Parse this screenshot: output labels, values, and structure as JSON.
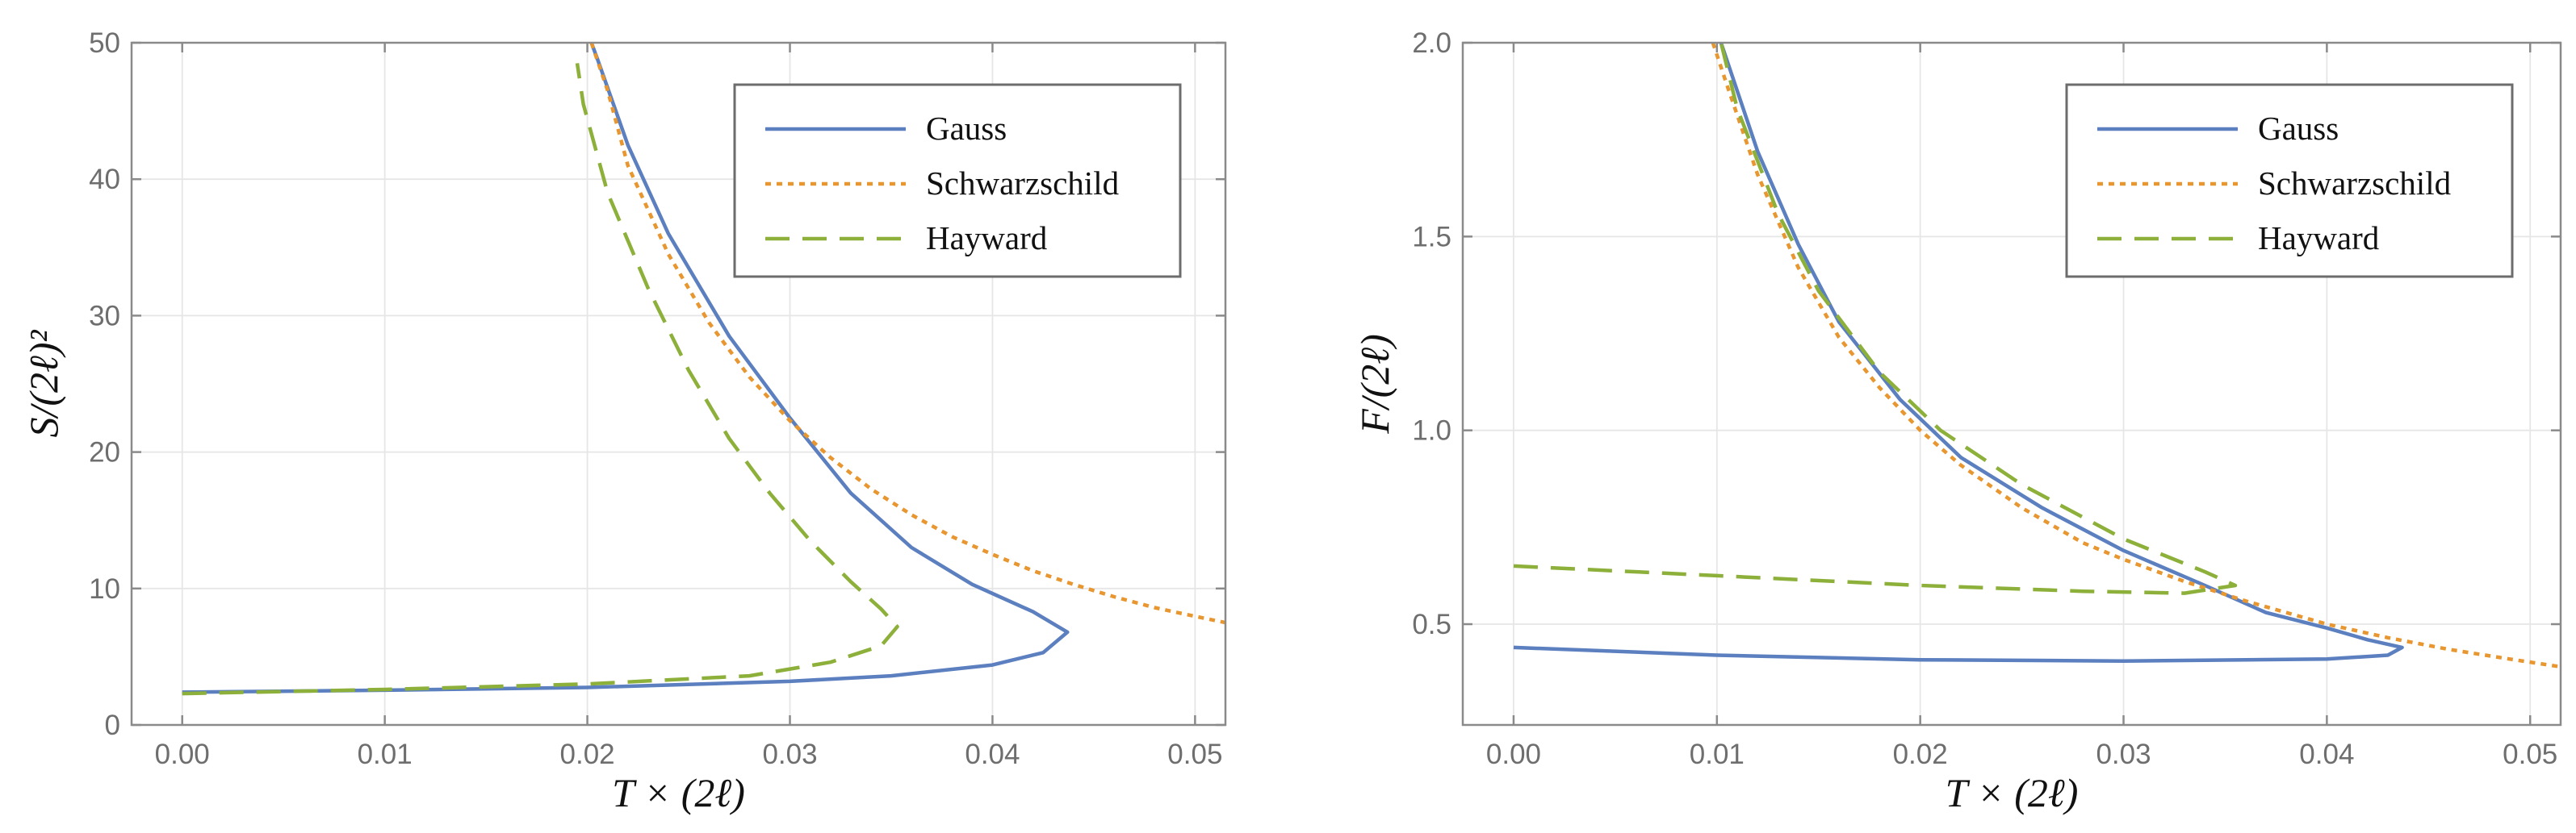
{
  "chart_data": [
    {
      "type": "line",
      "xlabel": "T × (2ℓ)",
      "ylabel": "S/(2ℓ)²",
      "xlim": [
        -0.0025,
        0.0515
      ],
      "ylim": [
        0,
        50
      ],
      "xticks": [
        0.0,
        0.01,
        0.02,
        0.03,
        0.04,
        0.05
      ],
      "xtick_labels": [
        "0.00",
        "0.01",
        "0.02",
        "0.03",
        "0.04",
        "0.05"
      ],
      "yticks": [
        0,
        10,
        20,
        30,
        40,
        50
      ],
      "ytick_labels": [
        "0",
        "10",
        "20",
        "30",
        "40",
        "50"
      ],
      "grid": true,
      "legend_position": "top-right",
      "series": [
        {
          "name": "Gauss",
          "color": "#5b7fbf",
          "style": "solid",
          "points": [
            [
              0.0,
              2.4
            ],
            [
              0.01,
              2.55
            ],
            [
              0.02,
              2.75
            ],
            [
              0.03,
              3.2
            ],
            [
              0.035,
              3.6
            ],
            [
              0.04,
              4.4
            ],
            [
              0.0425,
              5.3
            ],
            [
              0.0437,
              6.8
            ],
            [
              0.042,
              8.3
            ],
            [
              0.039,
              10.3
            ],
            [
              0.036,
              13.0
            ],
            [
              0.033,
              17.0
            ],
            [
              0.03,
              22.5
            ],
            [
              0.027,
              28.5
            ],
            [
              0.024,
              36.0
            ],
            [
              0.022,
              42.5
            ],
            [
              0.0205,
              48.8
            ],
            [
              0.0202,
              50.0
            ]
          ]
        },
        {
          "name": "Schwarzschild",
          "color": "#e8962f",
          "style": "dotted",
          "points": [
            [
              0.0202,
              50.0
            ],
            [
              0.021,
              46.5
            ],
            [
              0.022,
              41.0
            ],
            [
              0.024,
              34.5
            ],
            [
              0.026,
              29.5
            ],
            [
              0.028,
              25.5
            ],
            [
              0.03,
              22.3
            ],
            [
              0.032,
              19.6
            ],
            [
              0.034,
              17.3
            ],
            [
              0.036,
              15.4
            ],
            [
              0.038,
              13.8
            ],
            [
              0.04,
              12.5
            ],
            [
              0.042,
              11.3
            ],
            [
              0.044,
              10.3
            ],
            [
              0.046,
              9.4
            ],
            [
              0.048,
              8.6
            ],
            [
              0.05,
              7.96
            ],
            [
              0.0515,
              7.5
            ]
          ]
        },
        {
          "name": "Hayward",
          "color": "#8db03a",
          "style": "dashed",
          "points": [
            [
              0.0,
              2.3
            ],
            [
              0.01,
              2.6
            ],
            [
              0.02,
              3.0
            ],
            [
              0.028,
              3.6
            ],
            [
              0.032,
              4.6
            ],
            [
              0.0345,
              5.8
            ],
            [
              0.0353,
              7.2
            ],
            [
              0.0345,
              8.5
            ],
            [
              0.033,
              10.5
            ],
            [
              0.031,
              13.5
            ],
            [
              0.029,
              17.0
            ],
            [
              0.027,
              21.0
            ],
            [
              0.025,
              26.0
            ],
            [
              0.023,
              32.0
            ],
            [
              0.021,
              39.0
            ],
            [
              0.0198,
              45.5
            ],
            [
              0.0195,
              48.5
            ]
          ]
        }
      ]
    },
    {
      "type": "line",
      "xlabel": "T × (2ℓ)",
      "ylabel": "F/(2ℓ)",
      "xlim": [
        -0.0025,
        0.0515
      ],
      "ylim": [
        0.24,
        2.0
      ],
      "xticks": [
        0.0,
        0.01,
        0.02,
        0.03,
        0.04,
        0.05
      ],
      "xtick_labels": [
        "0.00",
        "0.01",
        "0.02",
        "0.03",
        "0.04",
        "0.05"
      ],
      "yticks": [
        0.5,
        1.0,
        1.5,
        2.0
      ],
      "ytick_labels": [
        "0.5",
        "1.0",
        "1.5",
        "2.0"
      ],
      "grid": true,
      "legend_position": "top-right",
      "series": [
        {
          "name": "Gauss",
          "color": "#5b7fbf",
          "style": "solid",
          "points": [
            [
              0.0,
              0.44
            ],
            [
              0.01,
              0.42
            ],
            [
              0.02,
              0.408
            ],
            [
              0.03,
              0.405
            ],
            [
              0.04,
              0.41
            ],
            [
              0.043,
              0.42
            ],
            [
              0.0437,
              0.44
            ],
            [
              0.042,
              0.46
            ],
            [
              0.04,
              0.49
            ],
            [
              0.037,
              0.53
            ],
            [
              0.034,
              0.6
            ],
            [
              0.03,
              0.69
            ],
            [
              0.026,
              0.8
            ],
            [
              0.022,
              0.93
            ],
            [
              0.019,
              1.08
            ],
            [
              0.016,
              1.28
            ],
            [
              0.014,
              1.48
            ],
            [
              0.012,
              1.72
            ],
            [
              0.0102,
              2.0
            ]
          ]
        },
        {
          "name": "Schwarzschild",
          "color": "#e8962f",
          "style": "dotted",
          "points": [
            [
              0.0098,
              2.0
            ],
            [
              0.0105,
              1.89
            ],
            [
              0.012,
              1.66
            ],
            [
              0.014,
              1.42
            ],
            [
              0.016,
              1.24
            ],
            [
              0.018,
              1.11
            ],
            [
              0.02,
              1.0
            ],
            [
              0.022,
              0.91
            ],
            [
              0.025,
              0.8
            ],
            [
              0.028,
              0.71
            ],
            [
              0.03,
              0.667
            ],
            [
              0.033,
              0.61
            ],
            [
              0.036,
              0.56
            ],
            [
              0.04,
              0.5
            ],
            [
              0.043,
              0.465
            ],
            [
              0.046,
              0.435
            ],
            [
              0.049,
              0.41
            ],
            [
              0.0515,
              0.39
            ]
          ]
        },
        {
          "name": "Hayward",
          "color": "#8db03a",
          "style": "dashed",
          "points": [
            [
              0.0,
              0.65
            ],
            [
              0.01,
              0.625
            ],
            [
              0.02,
              0.6
            ],
            [
              0.028,
              0.585
            ],
            [
              0.033,
              0.58
            ],
            [
              0.0355,
              0.6
            ],
            [
              0.034,
              0.635
            ],
            [
              0.03,
              0.72
            ],
            [
              0.025,
              0.86
            ],
            [
              0.021,
              1.0
            ],
            [
              0.018,
              1.15
            ],
            [
              0.015,
              1.36
            ],
            [
              0.013,
              1.56
            ],
            [
              0.011,
              1.83
            ],
            [
              0.0102,
              2.0
            ]
          ]
        }
      ]
    }
  ]
}
